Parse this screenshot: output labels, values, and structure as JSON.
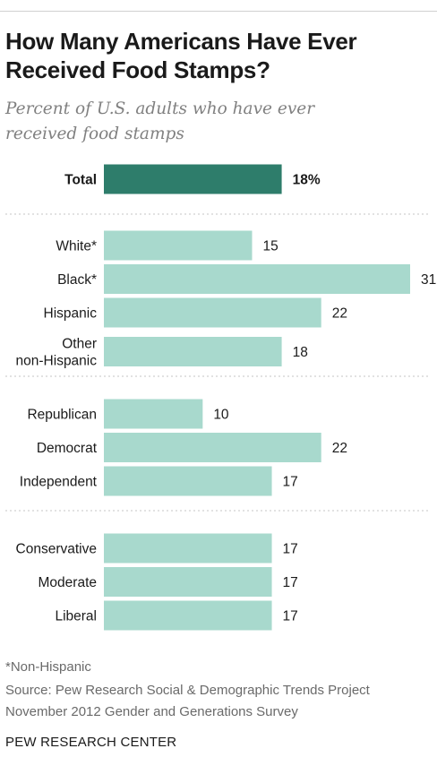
{
  "title_line1": "How Many Americans Have Ever",
  "title_line2": "Received Food Stamps?",
  "subtitle_line1": "Percent of U.S. adults who have ever",
  "subtitle_line2": "received food stamps",
  "note": "*Non-Hispanic",
  "source_line1": "Source: Pew Research Social & Demographic Trends Project",
  "source_line2": "November 2012 Gender and Generations Survey",
  "credit": "PEW RESEARCH CENTER",
  "colors": {
    "total_bar": "#2e7d6b",
    "bar": "#a8d9cd",
    "divider": "#d9d9d9"
  },
  "chart_data": {
    "type": "bar",
    "orientation": "horizontal",
    "xlim": [
      0,
      31
    ],
    "groups": [
      {
        "items": [
          {
            "label": "Total",
            "value": 18,
            "display": "18%",
            "emphasis": true
          }
        ]
      },
      {
        "items": [
          {
            "label": "White*",
            "value": 15,
            "display": "15"
          },
          {
            "label": "Black*",
            "value": 31,
            "display": "31"
          },
          {
            "label": "Hispanic",
            "value": 22,
            "display": "22"
          },
          {
            "label": "Other non-Hispanic",
            "value": 18,
            "display": "18"
          }
        ]
      },
      {
        "items": [
          {
            "label": "Republican",
            "value": 10,
            "display": "10"
          },
          {
            "label": "Democrat",
            "value": 22,
            "display": "22"
          },
          {
            "label": "Independent",
            "value": 17,
            "display": "17"
          }
        ]
      },
      {
        "items": [
          {
            "label": "Conservative",
            "value": 17,
            "display": "17"
          },
          {
            "label": "Moderate",
            "value": 17,
            "display": "17"
          },
          {
            "label": "Liberal",
            "value": 17,
            "display": "17"
          }
        ]
      }
    ]
  }
}
